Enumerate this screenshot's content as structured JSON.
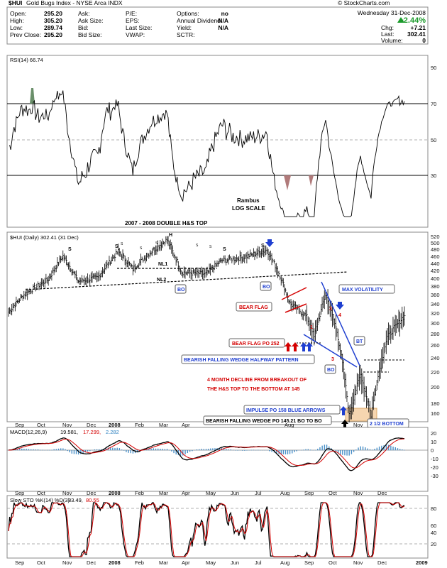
{
  "header": {
    "symbol": "$HUI",
    "name": "Gold Bugs Index - NYSE Arca INDX",
    "quote": [
      {
        "label": "Open:",
        "value": "295.20"
      },
      {
        "label": "High:",
        "value": "305.20"
      },
      {
        "label": "Low:",
        "value": "289.74"
      },
      {
        "label": "Prev Close:",
        "value": "295.20"
      }
    ],
    "book": [
      {
        "label": "Ask:",
        "value": ""
      },
      {
        "label": "Ask Size:",
        "value": ""
      },
      {
        "label": "Bid:",
        "value": ""
      },
      {
        "label": "Bid Size:",
        "value": ""
      }
    ],
    "stats": [
      {
        "label": "P/E:",
        "value": ""
      },
      {
        "label": "EPS:",
        "value": ""
      },
      {
        "label": "Last Size:",
        "value": ""
      },
      {
        "label": "VWAP:",
        "value": ""
      }
    ],
    "extra": [
      {
        "label": "Options:",
        "value": "no"
      },
      {
        "label": "Annual Dividend:",
        "value": "N/A"
      },
      {
        "label": "Yield:",
        "value": "N/A"
      },
      {
        "label": "SCTR:",
        "value": ""
      }
    ],
    "date": "Wednesday 31-Dec-2008",
    "change_pct": "+2.44%",
    "chg_label": "Chg:",
    "chg_value": "+7.21",
    "last_label": "Last:",
    "last_value": "302.41",
    "volume_label": "Volume:",
    "volume_value": "0",
    "brand": "© StockCharts.com"
  },
  "rsi_panel": {
    "label": "RSI(14) 66.74",
    "levels": [
      70,
      50,
      30
    ],
    "ticks": [
      "90",
      "70",
      "50",
      "30"
    ]
  },
  "overlay_text": {
    "author": "Rambus",
    "scale": "LOG SCALE",
    "title": "2007 - 2008 DOUBLE H&S TOP"
  },
  "price_panel": {
    "label": "$HUI (Daily) 302.41 (31 Dec)",
    "ticks": [
      "520",
      "500",
      "480",
      "460",
      "440",
      "420",
      "400",
      "380",
      "360",
      "340",
      "320",
      "300",
      "280",
      "260",
      "240",
      "220",
      "200",
      "180",
      "160"
    ]
  },
  "annotations": {
    "shoulder": "S",
    "head": "H",
    "nl1": "NL1",
    "nl2": "NL2",
    "bo": "BO",
    "bt": "BT",
    "bear_flag": "BEAR FLAG",
    "max_volatility": "MAX VOLATILITY",
    "bear_flag_po": "BEAR FLAG PO 252",
    "falling_wedge": "BEARISH FALLING WEDGE HALFWAY PATTERN",
    "decline_line1": "4 MONTH DECLINE FROM BREAKOUT OF",
    "decline_line2": "THE H&S TOP TO THE BOTTOM AT 145",
    "impulse": "IMPULSE PO 158 BLUE ARROWS",
    "wedge_po": "BEARISH FALLING WEDGE PO 145.21 BO TO BO",
    "bottom": "2 1/2 BOTTOM",
    "wave_marks": [
      "1",
      "2",
      "3",
      "4"
    ]
  },
  "macd_panel": {
    "label": "MACD(12,26,9)",
    "values": [
      "19.581,",
      "17.299,",
      "2.282"
    ],
    "colors": [
      "#000000",
      "#d40000",
      "#2a7fbf"
    ],
    "ticks": [
      "20",
      "10",
      "0",
      "-10",
      "-20",
      "-30"
    ]
  },
  "sto_panel": {
    "label": "Slow STO %K(14) %D(3)",
    "values": [
      "83.49,",
      "80.55"
    ],
    "colors": [
      "#000000",
      "#d40000"
    ],
    "ticks": [
      "80",
      "60",
      "40",
      "20"
    ]
  },
  "x_axis": {
    "months": [
      "Sep",
      "Oct",
      "Nov",
      "Dec",
      "2008",
      "Feb",
      "Mar",
      "Apr",
      "May",
      "Jun",
      "Jul",
      "Aug",
      "Sep",
      "Oct",
      "Nov",
      "Dec",
      "2009"
    ]
  },
  "chart_data": {
    "type": "line",
    "title": "$HUI (Daily) Gold Bugs Index",
    "x_range": [
      "2007-09",
      "2009-01"
    ],
    "price_anchors": [
      {
        "date": "2007-09-01",
        "value": 310
      },
      {
        "date": "2007-09-20",
        "value": 350
      },
      {
        "date": "2007-10-20",
        "value": 390
      },
      {
        "date": "2007-11-07",
        "value": 460
      },
      {
        "date": "2007-11-26",
        "value": 385
      },
      {
        "date": "2007-12-20",
        "value": 395
      },
      {
        "date": "2008-01-14",
        "value": 475
      },
      {
        "date": "2008-02-01",
        "value": 420
      },
      {
        "date": "2008-02-22",
        "value": 470
      },
      {
        "date": "2008-03-14",
        "value": 515
      },
      {
        "date": "2008-04-01",
        "value": 410
      },
      {
        "date": "2008-05-01",
        "value": 405
      },
      {
        "date": "2008-05-20",
        "value": 445
      },
      {
        "date": "2008-06-16",
        "value": 455
      },
      {
        "date": "2008-07-15",
        "value": 480
      },
      {
        "date": "2008-07-31",
        "value": 400
      },
      {
        "date": "2008-08-12",
        "value": 330
      },
      {
        "date": "2008-09-02",
        "value": 300
      },
      {
        "date": "2008-09-11",
        "value": 260
      },
      {
        "date": "2008-09-25",
        "value": 350
      },
      {
        "date": "2008-10-09",
        "value": 270
      },
      {
        "date": "2008-10-24",
        "value": 150
      },
      {
        "date": "2008-11-07",
        "value": 200
      },
      {
        "date": "2008-11-20",
        "value": 150
      },
      {
        "date": "2008-12-10",
        "value": 260
      },
      {
        "date": "2008-12-31",
        "value": 302.41
      }
    ],
    "y_range_price": [
      145,
      530
    ],
    "rsi_range": [
      10,
      100
    ],
    "macd_range": [
      -35,
      25
    ],
    "sto_range": [
      5,
      100
    ],
    "last_values": {
      "price": 302.41,
      "rsi": 66.74,
      "macd": 19.581,
      "signal": 17.299,
      "histogram": 2.282,
      "k": 83.49,
      "d": 80.55
    }
  }
}
